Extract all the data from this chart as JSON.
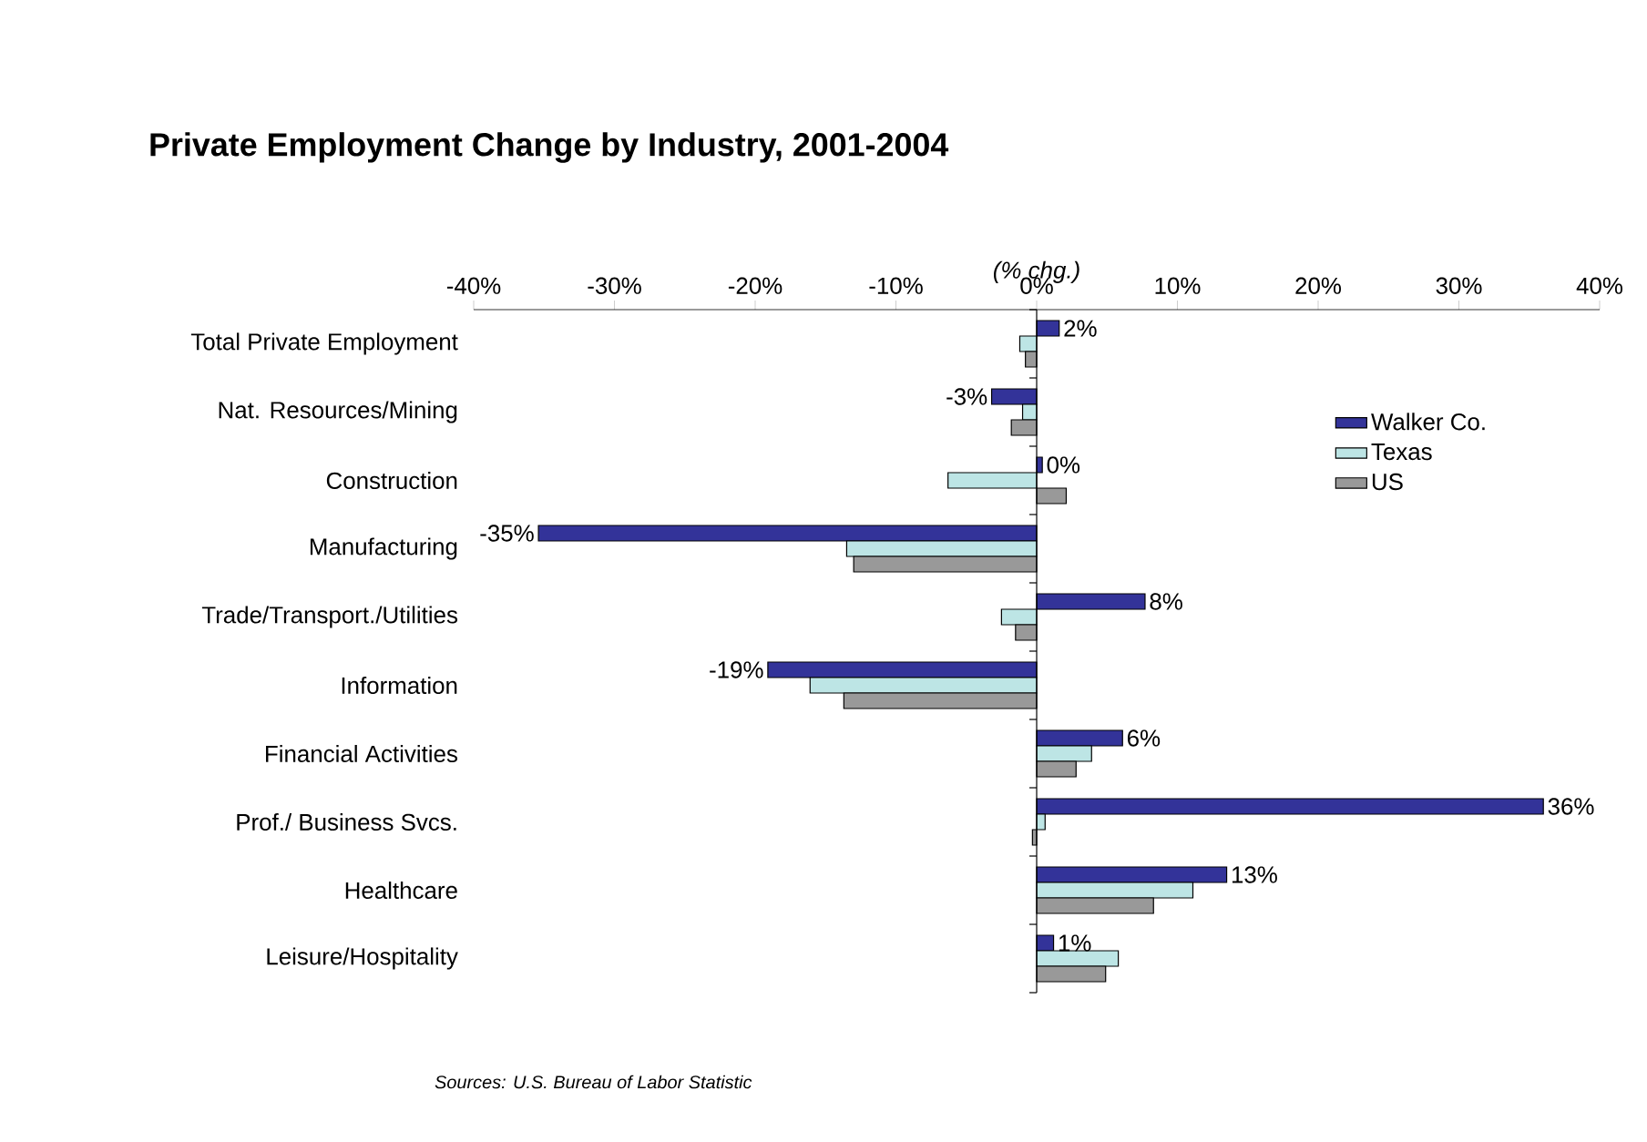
{
  "chart_data": {
    "type": "bar",
    "orientation": "horizontal",
    "title": "Private Employment Change by Industry, 2001-2004",
    "xlabel": "(% chg.)",
    "categories": [
      "Total Private Employment",
      "Nat. Resources/Mining",
      "Construction",
      "Manufacturing",
      "Trade/Transport./Utilities",
      "Information",
      "Financial Activities",
      "Prof./ Business Svcs.",
      "Healthcare",
      "Leisure/Hospitality"
    ],
    "series": [
      {
        "name": "Walker Co.",
        "color": "#333399",
        "values": [
          1.6,
          -3.2,
          0.4,
          -35.4,
          7.7,
          -19.1,
          6.1,
          36.0,
          13.5,
          1.2
        ],
        "value_labels": [
          "2%",
          "-3%",
          "0%",
          "-35%",
          "8%",
          "-19%",
          "6%",
          "36%",
          "13%",
          "1%"
        ]
      },
      {
        "name": "Texas",
        "color": "#bde5e5",
        "values": [
          -1.2,
          -1.0,
          -6.3,
          -13.5,
          -2.5,
          -16.1,
          3.9,
          0.6,
          11.1,
          5.8
        ]
      },
      {
        "name": "US",
        "color": "#999999",
        "values": [
          -0.8,
          -1.8,
          2.1,
          -13.0,
          -1.5,
          -13.7,
          2.8,
          -0.3,
          8.3,
          4.9
        ]
      }
    ],
    "xlim": [
      -40,
      40
    ],
    "xticks": [
      {
        "value": -40,
        "label": "-40%"
      },
      {
        "value": -30,
        "label": "-30%"
      },
      {
        "value": -20,
        "label": "-20%"
      },
      {
        "value": -10,
        "label": "-10%"
      },
      {
        "value": 0,
        "label": "0%"
      },
      {
        "value": 10,
        "label": "10%"
      },
      {
        "value": 20,
        "label": "20%"
      },
      {
        "value": 30,
        "label": "30%"
      },
      {
        "value": 40,
        "label": "40%"
      }
    ],
    "legend": "top right",
    "annotations": [
      "Sources: U.S. Bureau of Labor Statistic"
    ]
  }
}
